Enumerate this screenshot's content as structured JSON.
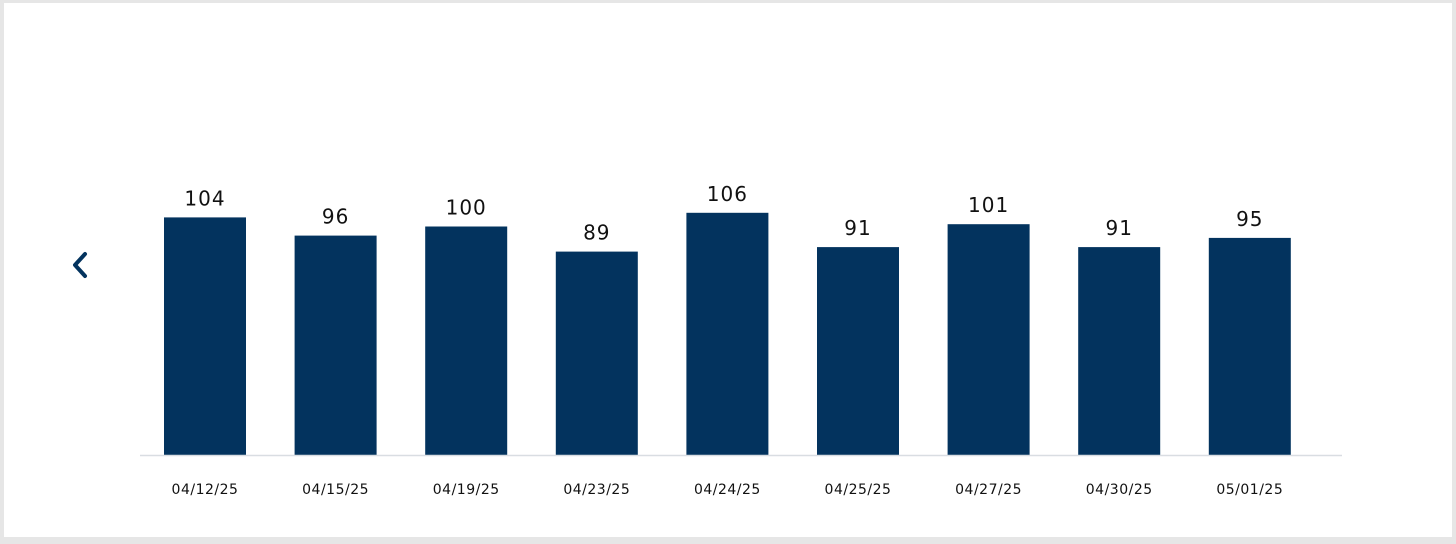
{
  "nav": {
    "prev_icon": "chevron-left-icon",
    "accent": "#03335e"
  },
  "chart_data": {
    "type": "bar",
    "title": "",
    "xlabel": "",
    "ylabel": "",
    "categories": [
      "04/12/25",
      "04/15/25",
      "04/19/25",
      "04/23/25",
      "04/24/25",
      "04/25/25",
      "04/27/25",
      "04/30/25",
      "05/01/25"
    ],
    "values": [
      104,
      96,
      100,
      89,
      106,
      91,
      101,
      91,
      95
    ],
    "ylim": [
      0,
      130
    ],
    "bar_color": "#03335e",
    "baseline_color": "#d9dde2",
    "grid": false,
    "legend": "none",
    "data_labels": true
  }
}
